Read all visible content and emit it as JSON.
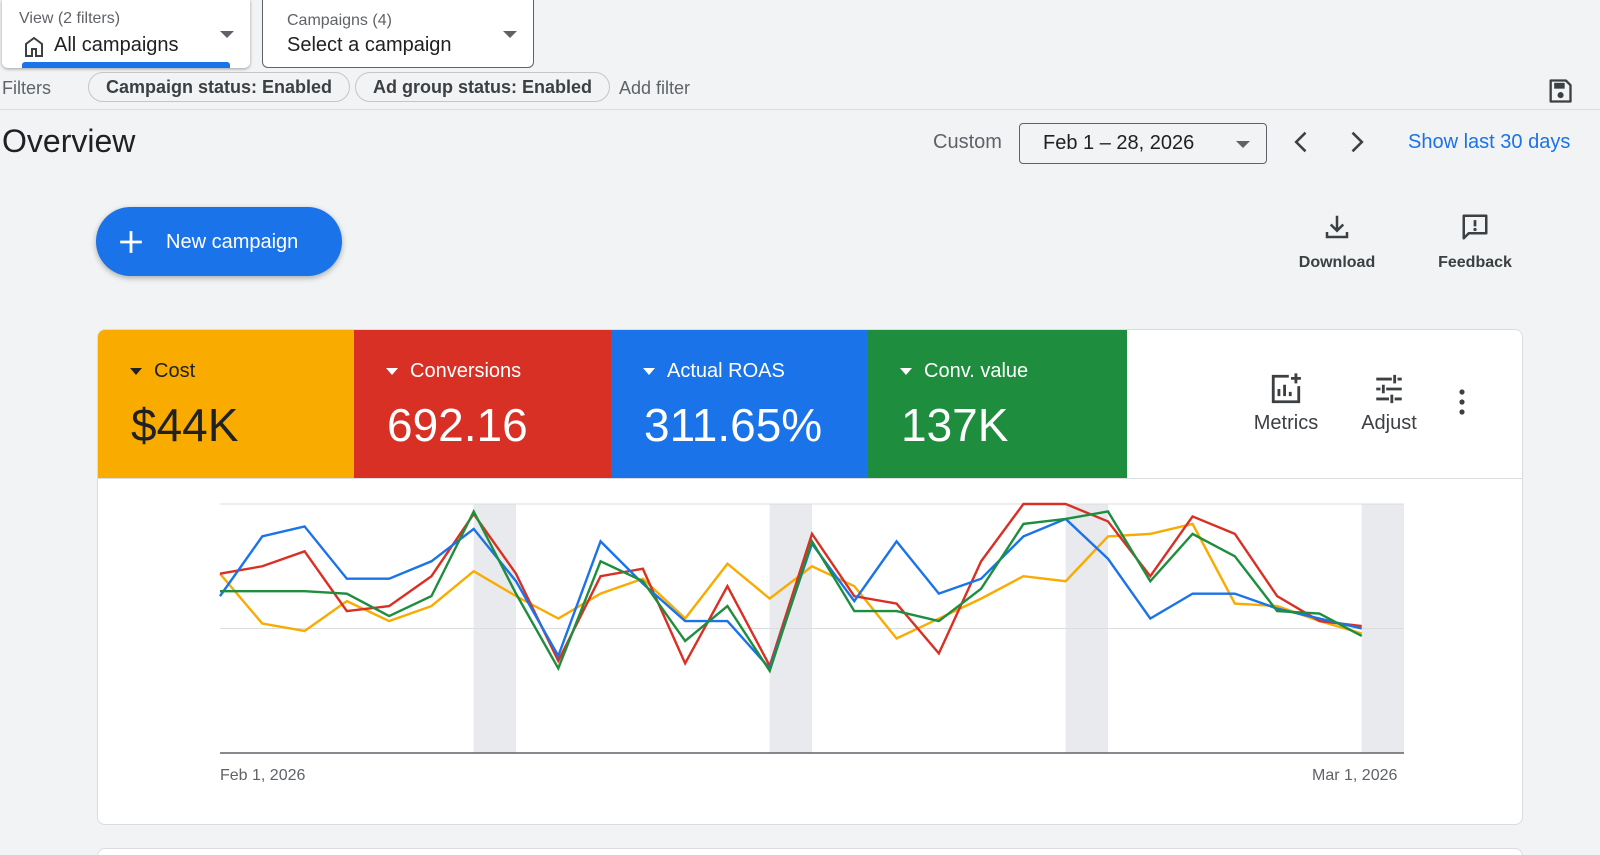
{
  "view_selector": {
    "label": "View (2 filters)",
    "value": "All campaigns"
  },
  "campaign_selector": {
    "label": "Campaigns (4)",
    "value": "Select a campaign"
  },
  "filters": {
    "label": "Filters",
    "chips": [
      "Campaign status: Enabled",
      "Ad group status: Enabled"
    ],
    "add_filter": "Add filter"
  },
  "overview": {
    "title": "Overview",
    "range_type": "Custom",
    "date_range": "Feb 1 – 28, 2026",
    "show_last": "Show last 30 days"
  },
  "actions": {
    "new_campaign": "New campaign",
    "download": "Download",
    "feedback": "Feedback"
  },
  "scorecards": [
    {
      "name": "Cost",
      "value": "$44K",
      "color": "#f9ab00"
    },
    {
      "name": "Conversions",
      "value": "692.16",
      "color": "#d93025"
    },
    {
      "name": "Actual ROAS",
      "value": "311.65%",
      "color": "#1a73e8"
    },
    {
      "name": "Conv. value",
      "value": "137K",
      "color": "#1e8e3e"
    }
  ],
  "card_tools": {
    "metrics": "Metrics",
    "adjust": "Adjust"
  },
  "chart_data": {
    "type": "line",
    "x_labels": [
      "Feb 1, 2026",
      "Mar 1, 2026"
    ],
    "x_start": "Feb 1, 2026",
    "x_end": "Mar 1, 2026",
    "weekend_bands": [
      "Feb 7–8",
      "Feb 14–15",
      "Feb 21–22",
      "Feb 28–Mar 1"
    ],
    "ylim": [
      0,
      100
    ],
    "series": [
      {
        "name": "Cost",
        "color": "#f9ab00",
        "values": [
          72,
          52,
          49,
          61,
          53,
          59,
          73,
          63,
          54,
          64,
          70,
          54,
          76,
          62,
          75,
          67,
          46,
          54,
          62,
          71,
          69,
          87,
          88,
          92,
          60,
          59,
          53,
          48
        ]
      },
      {
        "name": "Conversions",
        "color": "#d93025",
        "values": [
          72,
          75,
          81,
          57,
          59,
          71,
          96,
          72,
          37,
          71,
          74,
          36,
          67,
          35,
          88,
          63,
          60,
          40,
          77,
          100,
          100,
          93,
          71,
          95,
          88,
          63,
          53,
          51
        ]
      },
      {
        "name": "Actual ROAS",
        "color": "#1a73e8",
        "values": [
          63,
          87,
          91,
          70,
          70,
          77,
          90,
          69,
          39,
          85,
          68,
          53,
          53,
          34,
          84,
          61,
          85,
          64,
          70,
          87,
          94,
          78,
          54,
          64,
          64,
          58,
          54,
          50
        ]
      },
      {
        "name": "Conv. value",
        "color": "#1e8e3e",
        "values": [
          65,
          65,
          65,
          64,
          55,
          63,
          97,
          64,
          34,
          77,
          69,
          45,
          59,
          33,
          85,
          57,
          57,
          53,
          66,
          92,
          94,
          97,
          69,
          88,
          79,
          57,
          56,
          47
        ]
      }
    ]
  }
}
